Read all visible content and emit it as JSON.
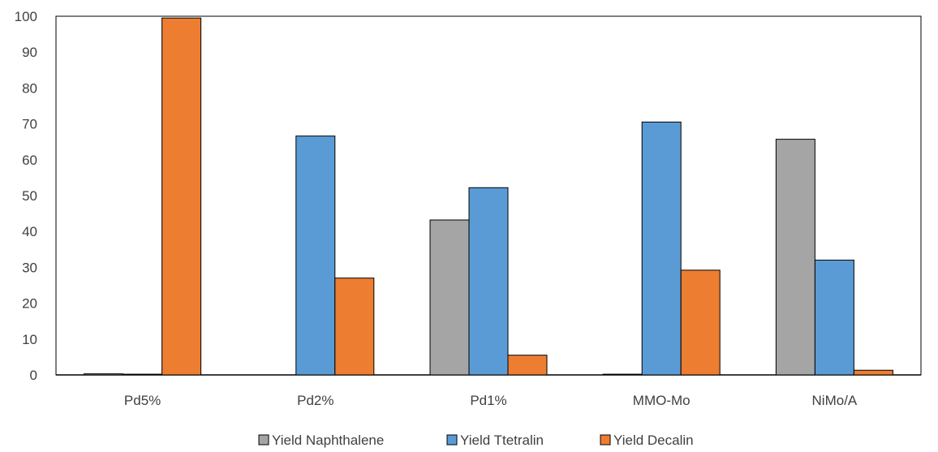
{
  "chart_data": {
    "type": "bar",
    "categories": [
      "Pd5%",
      "Pd2%",
      "Pd1%",
      "MMO-Mo",
      "NiMo/A"
    ],
    "series": [
      {
        "name": "Yield Naphthalene",
        "color": "#a5a5a5",
        "values": [
          0.3,
          0,
          43.2,
          0.2,
          65.7
        ]
      },
      {
        "name": "Yield Ttetralin",
        "color": "#5b9bd5",
        "values": [
          0.2,
          66.6,
          52.2,
          70.5,
          32.0
        ]
      },
      {
        "name": "Yield Decalin",
        "color": "#ed7d31",
        "values": [
          99.5,
          27.0,
          5.5,
          29.2,
          1.3
        ]
      }
    ],
    "yticks": [
      "0",
      "10",
      "20",
      "30",
      "40",
      "50",
      "60",
      "70",
      "80",
      "90",
      "100"
    ],
    "ylim": [
      0,
      100
    ],
    "title": "",
    "xlabel": "",
    "ylabel": "",
    "grid": false,
    "legend_position": "bottom"
  }
}
